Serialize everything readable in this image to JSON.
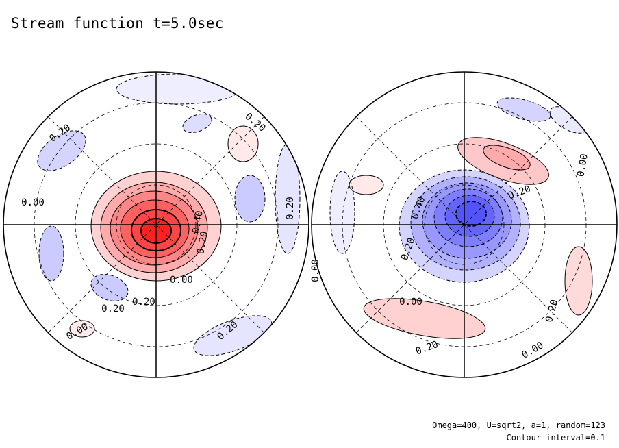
{
  "title": "Stream function t=5.0sec",
  "footer": {
    "params": "Omega=400, U=sqrt2, a=1, random=123",
    "contour": "Contour interval=0.1"
  },
  "chart_data": [
    {
      "type": "heatmap",
      "projection": "polar stereographic (northern hemisphere)",
      "center_value": 1.2,
      "contour_interval": 0.1,
      "contour_labels": [
        "0.20",
        "0.20",
        "0.20",
        "0.20",
        "0.20",
        "0.00",
        "0.00",
        "0.40",
        "0.20",
        "0.20",
        "0.00"
      ],
      "colors": {
        "positive": "#ff2020",
        "negative": "#3030ff"
      }
    },
    {
      "type": "heatmap",
      "projection": "polar stereographic (southern hemisphere)",
      "center_value": -1.0,
      "contour_interval": 0.1,
      "contour_labels": [
        "0.00",
        "0.20",
        "0.40",
        "0.20",
        "0.00",
        "0.20",
        "0.20",
        "0.00",
        "0.00"
      ],
      "colors": {
        "positive": "#ff2020",
        "negative": "#3030ff"
      }
    }
  ]
}
